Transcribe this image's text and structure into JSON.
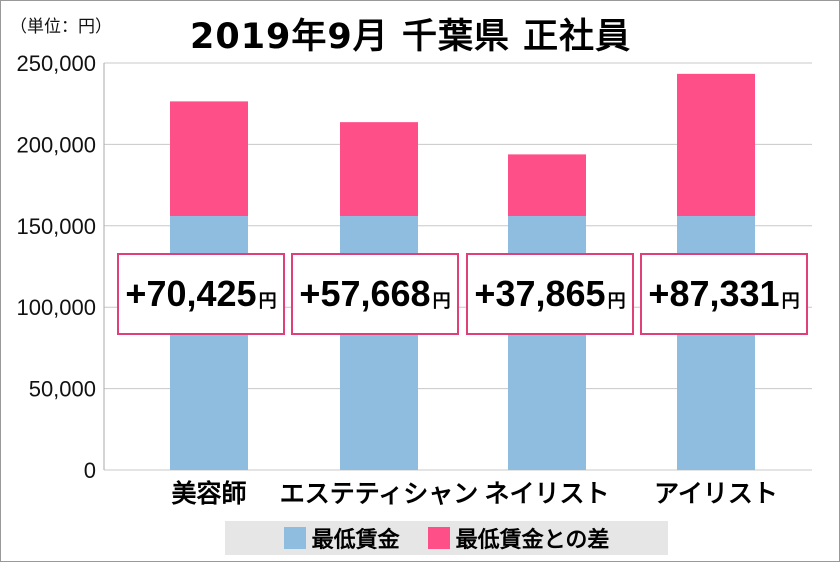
{
  "chart_data": {
    "type": "bar",
    "stacked": true,
    "title": "2019年9月 千葉県 正社員",
    "unit_label": "（単位：円）",
    "categories": [
      "美容師",
      "エステティシャン",
      "ネイリスト",
      "アイリスト"
    ],
    "series": [
      {
        "name": "最低賃金",
        "values": [
          156000,
          156000,
          156000,
          156000
        ],
        "color": "#8fbde0"
      },
      {
        "name": "最低賃金との差",
        "values": [
          70425,
          57668,
          37865,
          87331
        ],
        "color": "#ff4f88"
      }
    ],
    "data_labels": [
      "+70,425",
      "+57,668",
      "+37,865",
      "+87,331"
    ],
    "data_label_unit": "円",
    "ylim": [
      0,
      250000
    ],
    "yticks": [
      "0",
      "50,000",
      "100,000",
      "150,000",
      "200,000",
      "250,000"
    ],
    "ytick_values": [
      0,
      50000,
      100000,
      150000,
      200000,
      250000
    ],
    "grid": true,
    "legend_position": "bottom"
  }
}
